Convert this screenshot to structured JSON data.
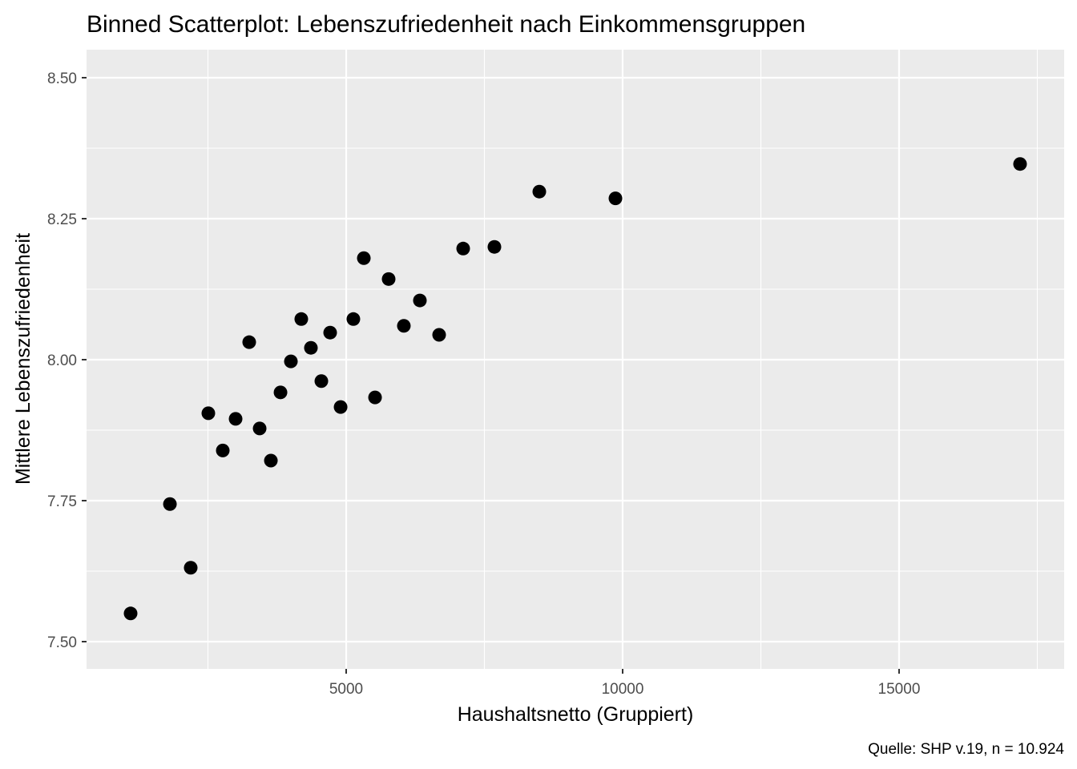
{
  "chart_data": {
    "type": "scatter",
    "title": "Binned Scatterplot: Lebenszufriedenheit nach Einkommensgruppen",
    "xlabel": "Haushaltsnetto (Gruppiert)",
    "ylabel": "Mittlere Lebenszufriedenheit",
    "caption": "Quelle: SHP v.19, n = 10.924",
    "xlim": [
      304,
      17986
    ],
    "ylim": [
      7.4517,
      8.5497
    ],
    "x_ticks": [
      5000,
      10000,
      15000
    ],
    "x_tick_labels": [
      "5000",
      "10000",
      "15000"
    ],
    "x_minor": [
      2500,
      7500,
      12500,
      17500
    ],
    "y_ticks": [
      7.5,
      7.75,
      8.0,
      8.25,
      8.5
    ],
    "y_tick_labels": [
      "7.50",
      "7.75",
      "8.00",
      "8.25",
      "8.50"
    ],
    "y_minor": [
      7.625,
      7.875,
      8.125,
      8.375
    ],
    "grid": true,
    "colors": {
      "panel": "#ebebeb",
      "grid": "#ffffff",
      "point": "#000000"
    },
    "points": [
      {
        "x": 1101,
        "y": 7.55
      },
      {
        "x": 1812,
        "y": 7.744
      },
      {
        "x": 2188,
        "y": 7.631
      },
      {
        "x": 2507,
        "y": 7.905
      },
      {
        "x": 2768,
        "y": 7.839
      },
      {
        "x": 3000,
        "y": 7.895
      },
      {
        "x": 3246,
        "y": 8.031
      },
      {
        "x": 3435,
        "y": 7.878
      },
      {
        "x": 3638,
        "y": 7.821
      },
      {
        "x": 3812,
        "y": 7.942
      },
      {
        "x": 4000,
        "y": 7.997
      },
      {
        "x": 4188,
        "y": 8.072
      },
      {
        "x": 4362,
        "y": 8.021
      },
      {
        "x": 4551,
        "y": 7.962
      },
      {
        "x": 4710,
        "y": 8.048
      },
      {
        "x": 4899,
        "y": 7.916
      },
      {
        "x": 5130,
        "y": 8.072
      },
      {
        "x": 5319,
        "y": 8.18
      },
      {
        "x": 5522,
        "y": 7.933
      },
      {
        "x": 5768,
        "y": 8.143
      },
      {
        "x": 6043,
        "y": 8.06
      },
      {
        "x": 6333,
        "y": 8.105
      },
      {
        "x": 6681,
        "y": 8.044
      },
      {
        "x": 7116,
        "y": 8.197
      },
      {
        "x": 7681,
        "y": 8.2
      },
      {
        "x": 8493,
        "y": 8.298
      },
      {
        "x": 9870,
        "y": 8.286
      },
      {
        "x": 17188,
        "y": 8.347
      }
    ]
  }
}
